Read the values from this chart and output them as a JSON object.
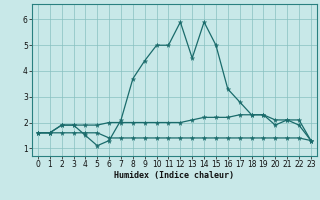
{
  "background_color": "#c8e8e8",
  "grid_color": "#88c0c0",
  "line_color": "#1a6b6b",
  "xlabel": "Humidex (Indice chaleur)",
  "xlim": [
    -0.5,
    23.5
  ],
  "ylim": [
    0.7,
    6.6
  ],
  "xticks": [
    0,
    1,
    2,
    3,
    4,
    5,
    6,
    7,
    8,
    9,
    10,
    11,
    12,
    13,
    14,
    15,
    16,
    17,
    18,
    19,
    20,
    21,
    22,
    23
  ],
  "yticks": [
    1,
    2,
    3,
    4,
    5,
    6
  ],
  "line1_x": [
    0,
    1,
    2,
    3,
    4,
    5,
    6,
    7,
    8,
    9,
    10,
    11,
    12,
    13,
    14,
    15,
    16,
    17,
    18,
    19,
    20,
    21,
    22,
    23
  ],
  "line1_y": [
    1.6,
    1.6,
    1.9,
    1.9,
    1.5,
    1.1,
    1.3,
    2.1,
    3.7,
    4.4,
    5.0,
    5.0,
    5.9,
    4.5,
    5.9,
    5.0,
    3.3,
    2.8,
    2.3,
    2.3,
    1.9,
    2.1,
    2.1,
    1.3
  ],
  "line2_x": [
    0,
    1,
    2,
    3,
    4,
    5,
    6,
    7,
    8,
    9,
    10,
    11,
    12,
    13,
    14,
    15,
    16,
    17,
    18,
    19,
    20,
    21,
    22,
    23
  ],
  "line2_y": [
    1.6,
    1.6,
    1.9,
    1.9,
    1.9,
    1.9,
    2.0,
    2.0,
    2.0,
    2.0,
    2.0,
    2.0,
    2.0,
    2.1,
    2.2,
    2.2,
    2.2,
    2.3,
    2.3,
    2.3,
    2.1,
    2.1,
    1.9,
    1.3
  ],
  "line3_x": [
    0,
    1,
    2,
    3,
    4,
    5,
    6,
    7,
    8,
    9,
    10,
    11,
    12,
    13,
    14,
    15,
    16,
    17,
    18,
    19,
    20,
    21,
    22,
    23
  ],
  "line3_y": [
    1.6,
    1.6,
    1.6,
    1.6,
    1.6,
    1.6,
    1.4,
    1.4,
    1.4,
    1.4,
    1.4,
    1.4,
    1.4,
    1.4,
    1.4,
    1.4,
    1.4,
    1.4,
    1.4,
    1.4,
    1.4,
    1.4,
    1.4,
    1.3
  ],
  "tick_fontsize": 5.5,
  "xlabel_fontsize": 6.0,
  "marker_size": 3.5,
  "linewidth": 0.9,
  "spine_color": "#2a8080"
}
